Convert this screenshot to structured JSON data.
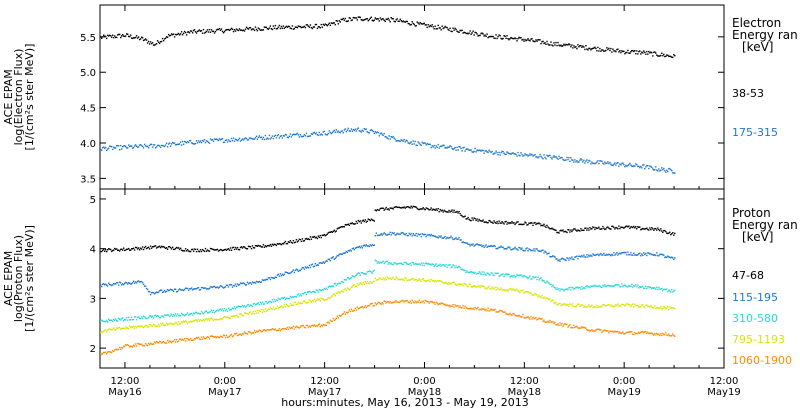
{
  "xlabel": "hours:minutes, May 16, 2013 - May 19, 2013",
  "xticks": [
    {
      "x": 0,
      "time": "12:00",
      "date": "May16"
    },
    {
      "x": 12,
      "time": "0:00",
      "date": "May17"
    },
    {
      "x": 24,
      "time": "12:00",
      "date": "May17"
    },
    {
      "x": 36,
      "time": "0:00",
      "date": "May18"
    },
    {
      "x": 48,
      "time": "12:00",
      "date": "May18"
    },
    {
      "x": 60,
      "time": "0:00",
      "date": "May19"
    },
    {
      "x": 72,
      "time": "12:00",
      "date": "May19"
    }
  ],
  "chart_data": [
    {
      "type": "scatter",
      "panel": "electron",
      "ylabel_lines": [
        "ACE EPAM",
        "log(Electron Flux)",
        "[1/(cm²s ster MeV)]"
      ],
      "xlim": [
        -3,
        72
      ],
      "ylim": [
        3.35,
        5.95
      ],
      "yticks": [
        3.5,
        4.0,
        4.5,
        5.0,
        5.5
      ],
      "ytick_labels": [
        "3.5",
        "4.0",
        "4.5",
        "5.0",
        "5.5"
      ],
      "legend_title": [
        "Electron",
        "Energy ran",
        "[keV]"
      ],
      "series": [
        {
          "name": "38-53",
          "color": "#000000",
          "x": [
            -3,
            0,
            2,
            3.5,
            5,
            8,
            12,
            18,
            24,
            26,
            28,
            30,
            32,
            36,
            40,
            44,
            48,
            52,
            56,
            60,
            62,
            64,
            66
          ],
          "y": [
            5.5,
            5.53,
            5.48,
            5.4,
            5.52,
            5.58,
            5.6,
            5.64,
            5.66,
            5.74,
            5.77,
            5.76,
            5.75,
            5.67,
            5.6,
            5.52,
            5.47,
            5.4,
            5.35,
            5.3,
            5.29,
            5.26,
            5.23
          ]
        },
        {
          "name": "175-315",
          "color": "#1e78d2",
          "x": [
            -3,
            0,
            4,
            8,
            12,
            18,
            24,
            26,
            28,
            30,
            32,
            36,
            40,
            44,
            48,
            52,
            56,
            60,
            62,
            64,
            66
          ],
          "y": [
            3.93,
            3.95,
            3.97,
            4.02,
            4.05,
            4.1,
            4.15,
            4.18,
            4.2,
            4.16,
            4.08,
            3.98,
            3.93,
            3.88,
            3.84,
            3.8,
            3.74,
            3.7,
            3.68,
            3.64,
            3.61
          ]
        }
      ]
    },
    {
      "type": "scatter",
      "panel": "proton",
      "ylabel_lines": [
        "ACE EPAM",
        "log(Proton Flux)",
        "[1/(cm²s ster MeV)]"
      ],
      "xlim": [
        -3,
        72
      ],
      "ylim": [
        1.6,
        5.2
      ],
      "yticks": [
        2,
        3,
        4,
        5
      ],
      "ytick_labels": [
        "2",
        "3",
        "4",
        "5"
      ],
      "legend_title": [
        "Proton",
        "Energy ran",
        "[keV]"
      ],
      "series": [
        {
          "name": "47-68",
          "color": "#000000",
          "x": [
            -3,
            0,
            4,
            8,
            12,
            16,
            20,
            24,
            26,
            28,
            29.9,
            30,
            32,
            34,
            36,
            38,
            40,
            41,
            44,
            48,
            50,
            52,
            56,
            60,
            62,
            64,
            66
          ],
          "y": [
            3.98,
            4.0,
            4.05,
            3.98,
            4.0,
            4.05,
            4.15,
            4.28,
            4.45,
            4.55,
            4.6,
            4.8,
            4.82,
            4.85,
            4.82,
            4.78,
            4.75,
            4.62,
            4.55,
            4.52,
            4.5,
            4.35,
            4.42,
            4.45,
            4.42,
            4.4,
            4.3
          ]
        },
        {
          "name": "115-195",
          "color": "#1e78d2",
          "x": [
            -3,
            0,
            2,
            3,
            4,
            8,
            12,
            16,
            20,
            24,
            26,
            28,
            29.9,
            30,
            32,
            34,
            36,
            38,
            40,
            41,
            44,
            48,
            50,
            52,
            56,
            60,
            62,
            64,
            66
          ],
          "y": [
            3.28,
            3.32,
            3.35,
            3.12,
            3.15,
            3.2,
            3.25,
            3.35,
            3.55,
            3.75,
            3.9,
            4.05,
            4.1,
            4.3,
            4.32,
            4.3,
            4.28,
            4.25,
            4.22,
            4.1,
            4.05,
            4.0,
            3.98,
            3.78,
            3.88,
            3.92,
            3.9,
            3.9,
            3.8
          ]
        },
        {
          "name": "310-580",
          "color": "#28d7d7",
          "x": [
            -3,
            0,
            4,
            8,
            12,
            16,
            20,
            24,
            26,
            28,
            29.9,
            30,
            32,
            36,
            40,
            41,
            44,
            48,
            50,
            52,
            56,
            60,
            62,
            64,
            66
          ],
          "y": [
            2.55,
            2.6,
            2.65,
            2.7,
            2.78,
            2.9,
            3.05,
            3.2,
            3.35,
            3.5,
            3.55,
            3.75,
            3.72,
            3.7,
            3.65,
            3.55,
            3.5,
            3.45,
            3.4,
            3.18,
            3.25,
            3.28,
            3.25,
            3.22,
            3.15
          ]
        },
        {
          "name": "795-1193",
          "color": "#d7e600",
          "x": [
            -3,
            0,
            4,
            8,
            12,
            16,
            20,
            24,
            26,
            28,
            29.9,
            30,
            32,
            36,
            40,
            44,
            48,
            50,
            52,
            56,
            60,
            62,
            64,
            66
          ],
          "y": [
            2.35,
            2.42,
            2.48,
            2.55,
            2.62,
            2.75,
            2.9,
            3.0,
            3.15,
            3.3,
            3.35,
            3.4,
            3.42,
            3.38,
            3.3,
            3.22,
            3.15,
            3.05,
            2.9,
            2.85,
            2.88,
            2.86,
            2.84,
            2.8
          ]
        },
        {
          "name": "1060-1900",
          "color": "#ff8c00",
          "x": [
            -3,
            0,
            4,
            8,
            12,
            16,
            20,
            24,
            26,
            28,
            30,
            32,
            36,
            40,
            44,
            48,
            52,
            56,
            60,
            62,
            64,
            66
          ],
          "y": [
            1.88,
            2.05,
            2.12,
            2.2,
            2.25,
            2.35,
            2.42,
            2.48,
            2.7,
            2.82,
            2.9,
            2.95,
            2.95,
            2.85,
            2.78,
            2.65,
            2.5,
            2.38,
            2.32,
            2.32,
            2.3,
            2.28
          ]
        }
      ]
    }
  ]
}
